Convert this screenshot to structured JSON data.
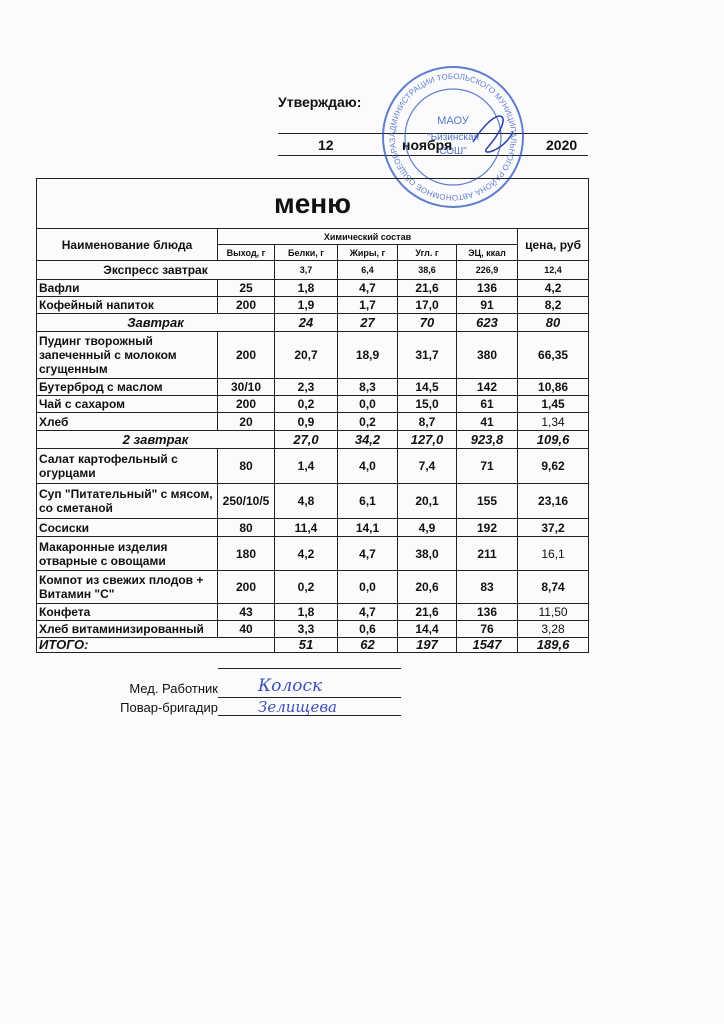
{
  "header": {
    "approve_label": "Утверждаю:",
    "date_day": "12",
    "date_month": "ноября",
    "date_year": "2020"
  },
  "stamp": {
    "center_text": "МАОУ \"Бизинская СОШ\"",
    "ring_text": "АДМИНИСТРАЦИИ ТОБОЛЬСКОГО МУНИЦИПАЛЬНОГО РАЙОНА АВТОНОМНОЕ ОБЩЕОБРАЗОВАТЕЛЬНОЕ УЧРЕЖДЕНИЕ",
    "color": "#3b5fc0"
  },
  "menu": {
    "title": "меню",
    "headers": {
      "name": "Наименование блюда",
      "chem": "Химический состав",
      "price": "цена, руб",
      "sub": [
        "Выход, г",
        "Белки, г",
        "Жиры, г",
        "Угл. г",
        "ЭЦ, ккал"
      ]
    },
    "rows": [
      {
        "type": "section-small",
        "name": "Экспресс завтрак",
        "yield": "",
        "protein": "3,7",
        "fat": "6,4",
        "carbs": "38,6",
        "kcal": "226,9",
        "price": "12,4"
      },
      {
        "type": "item",
        "name": "Вафли",
        "yield": "25",
        "protein": "1,8",
        "fat": "4,7",
        "carbs": "21,6",
        "kcal": "136",
        "price": "4,2"
      },
      {
        "type": "item",
        "name": "Кофейный напиток",
        "yield": "200",
        "protein": "1,9",
        "fat": "1,7",
        "carbs": "17,0",
        "kcal": "91",
        "price": "8,2"
      },
      {
        "type": "section",
        "name": "Завтрак",
        "yield": "",
        "protein": "24",
        "fat": "27",
        "carbs": "70",
        "kcal": "623",
        "price": "80"
      },
      {
        "type": "item",
        "name": "Пудинг творожный запеченный с молоком сгущенным",
        "yield": "200",
        "protein": "20,7",
        "fat": "18,9",
        "carbs": "31,7",
        "kcal": "380",
        "price": "66,35"
      },
      {
        "type": "item",
        "name": "Бутерброд с маслом",
        "yield": "30/10",
        "protein": "2,3",
        "fat": "8,3",
        "carbs": "14,5",
        "kcal": "142",
        "price": "10,86"
      },
      {
        "type": "item",
        "name": "Чай с сахаром",
        "yield": "200",
        "protein": "0,2",
        "fat": "0,0",
        "carbs": "15,0",
        "kcal": "61",
        "price": "1,45"
      },
      {
        "type": "item",
        "name": "Хлеб",
        "yield": "20",
        "protein": "0,9",
        "fat": "0,2",
        "carbs": "8,7",
        "kcal": "41",
        "price": "1,34"
      },
      {
        "type": "section",
        "name": "2 завтрак",
        "yield": "",
        "protein": "27,0",
        "fat": "34,2",
        "carbs": "127,0",
        "kcal": "923,8",
        "price": "109,6"
      },
      {
        "type": "item",
        "name": "Салат картофельный с огурцами",
        "yield": "80",
        "protein": "1,4",
        "fat": "4,0",
        "carbs": "7,4",
        "kcal": "71",
        "price": "9,62"
      },
      {
        "type": "item",
        "name": "Суп \"Питательный\"  с мясом, со сметаной",
        "yield": "250/10/5",
        "protein": "4,8",
        "fat": "6,1",
        "carbs": "20,1",
        "kcal": "155",
        "price": "23,16"
      },
      {
        "type": "item",
        "name": "Сосиски",
        "yield": "80",
        "protein": "11,4",
        "fat": "14,1",
        "carbs": "4,9",
        "kcal": "192",
        "price": "37,2"
      },
      {
        "type": "item",
        "name": "Макаронные изделия отварные с овощами",
        "yield": "180",
        "protein": "4,2",
        "fat": "4,7",
        "carbs": "38,0",
        "kcal": "211",
        "price": "16,1"
      },
      {
        "type": "item",
        "name": "Компот из свежих плодов + Витамин \"С\"",
        "yield": "200",
        "protein": "0,2",
        "fat": "0,0",
        "carbs": "20,6",
        "kcal": "83",
        "price": "8,74"
      },
      {
        "type": "item",
        "name": "Конфета",
        "yield": "43",
        "protein": "1,8",
        "fat": "4,7",
        "carbs": "21,6",
        "kcal": "136",
        "price": "11,50"
      },
      {
        "type": "item",
        "name": "Хлеб витаминизированный",
        "yield": "40",
        "protein": "3,3",
        "fat": "0,6",
        "carbs": "14,4",
        "kcal": "76",
        "price": "3,28"
      },
      {
        "type": "total",
        "name": "ИТОГО:",
        "yield": "",
        "protein": "51",
        "fat": "62",
        "carbs": "197",
        "kcal": "1547",
        "price": "189,6"
      }
    ]
  },
  "signatures": {
    "medic_label": "Мед. Работник",
    "medic_signature": "Колоск",
    "cook_label": "Повар-бригадир",
    "cook_signature": "Зелищева"
  }
}
